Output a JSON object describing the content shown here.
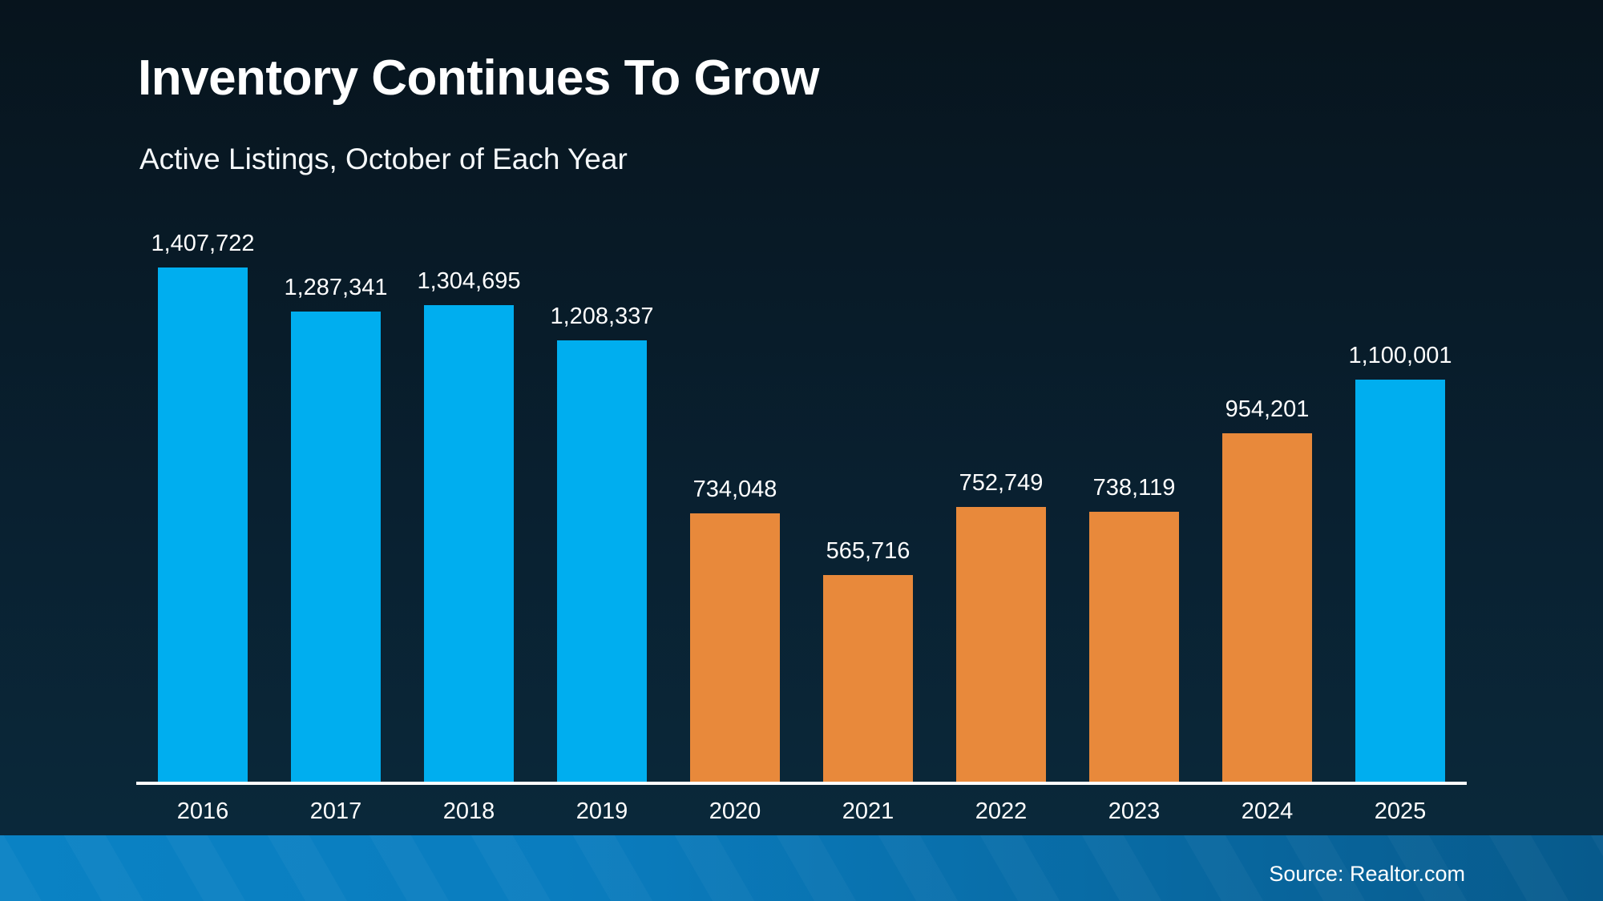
{
  "title": "Inventory Continues To Grow",
  "subtitle": "Active Listings, October of Each Year",
  "source": "Source: Realtor.com",
  "colors": {
    "blue": "#00AEEF",
    "orange": "#E8893B",
    "axis": "#FFFFFF",
    "background_top": "#07141d",
    "background_bottom": "#0a2a3c",
    "footer_left": "#0a82c4",
    "footer_right": "#075a8c",
    "text": "#FFFFFF"
  },
  "chart_data": {
    "type": "bar",
    "title": "Inventory Continues To Grow",
    "subtitle": "Active Listings, October of Each Year",
    "xlabel": "",
    "ylabel": "",
    "categories": [
      "2016",
      "2017",
      "2018",
      "2019",
      "2020",
      "2021",
      "2022",
      "2023",
      "2024",
      "2025"
    ],
    "values": [
      1407722,
      1287341,
      1304695,
      1208337,
      734048,
      565716,
      752749,
      738119,
      954201,
      1100001
    ],
    "data_labels": [
      "1,407,722",
      "1,287,341",
      "1,304,695",
      "1,208,337",
      "734,048",
      "565,716",
      "752,749",
      "738,119",
      "954,201",
      "1,100,001"
    ],
    "bar_colors": [
      "blue",
      "blue",
      "blue",
      "blue",
      "orange",
      "orange",
      "orange",
      "orange",
      "orange",
      "blue"
    ],
    "ylim": [
      0,
      1407722
    ],
    "grid": false,
    "legend": false,
    "y_axis_visible": false,
    "x_axis_visible": true
  }
}
